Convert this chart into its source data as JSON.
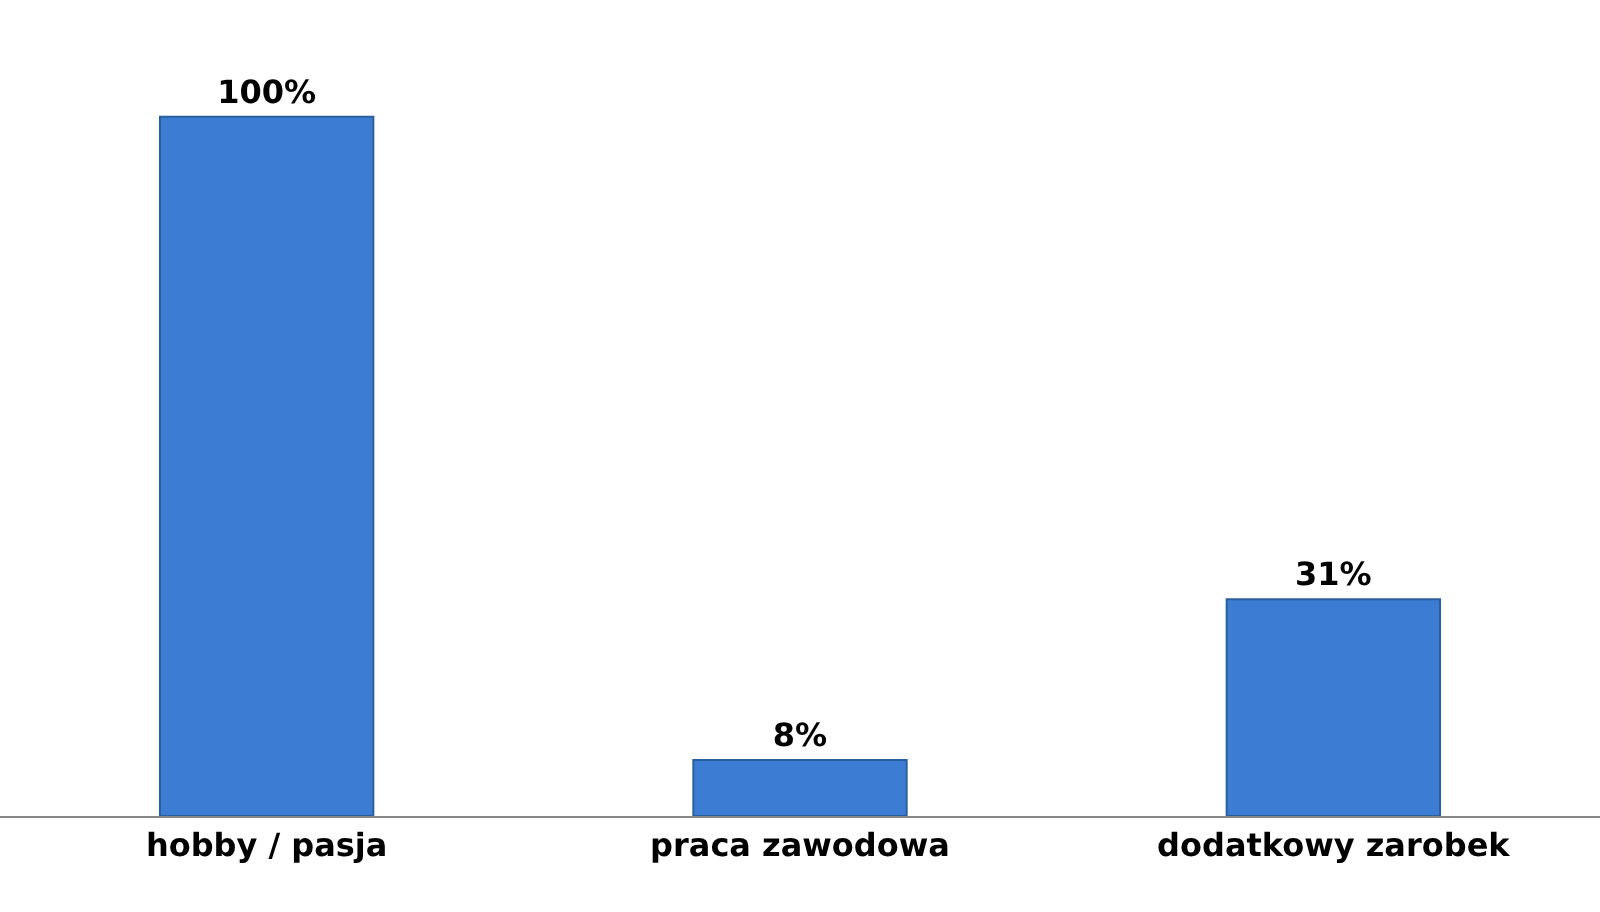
{
  "chart_data": {
    "type": "bar",
    "categories": [
      "hobby / pasja",
      "praca zawodowa",
      "dodatkowy zarobek"
    ],
    "values": [
      100,
      8,
      31
    ],
    "value_labels": [
      "100%",
      "8%",
      "31%"
    ],
    "color": "#3c7dd3",
    "grid": false,
    "legend": false
  }
}
